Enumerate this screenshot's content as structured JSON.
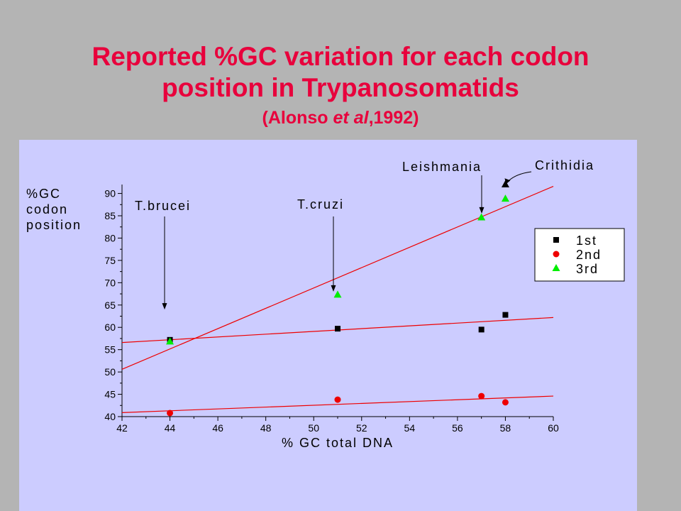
{
  "slide": {
    "title_line1": "Reported %GC variation for each codon",
    "title_line2": "position in Trypanosomatids",
    "citation_pre": "(Alonso ",
    "citation_italic": "et al",
    "citation_post": ",1992)"
  },
  "chart_data": {
    "type": "scatter",
    "xlabel": "% GC total DNA",
    "ylabel_lines": [
      "%GC",
      "codon",
      "position"
    ],
    "xlim": [
      42,
      60
    ],
    "ylim": [
      40,
      92
    ],
    "xticks": [
      42,
      44,
      46,
      48,
      50,
      52,
      54,
      56,
      58,
      60
    ],
    "yticks": [
      40,
      45,
      50,
      55,
      60,
      65,
      70,
      75,
      80,
      85,
      90
    ],
    "legend_position": "right",
    "series": [
      {
        "name": "1st",
        "marker": "square",
        "color": "#000000",
        "x": [
          44,
          51,
          57,
          58
        ],
        "y": [
          57.2,
          59.7,
          59.5,
          62.8
        ],
        "fit": {
          "x0": 42,
          "y0": 56.6,
          "x1": 60,
          "y1": 62.2,
          "color": "#ee0000"
        }
      },
      {
        "name": "2nd",
        "marker": "circle",
        "color": "#ee0000",
        "x": [
          44,
          51,
          57,
          58
        ],
        "y": [
          40.8,
          43.8,
          44.6,
          43.2
        ],
        "fit": {
          "x0": 42,
          "y0": 40.9,
          "x1": 60,
          "y1": 44.6,
          "color": "#ee0000"
        }
      },
      {
        "name": "3rd",
        "marker": "triangle",
        "color": "#00ee00",
        "x": [
          44,
          51,
          57,
          58
        ],
        "y": [
          56.8,
          67.3,
          84.6,
          88.8
        ],
        "fit": {
          "x0": 42,
          "y0": 50.6,
          "x1": 60,
          "y1": 91.6,
          "color": "#ee0000"
        }
      }
    ],
    "annotations": [
      {
        "text": "T.brucei",
        "x": 44,
        "arrow_to_y": 64
      },
      {
        "text": "T.cruzi",
        "x": 51,
        "arrow_to_y": 68
      },
      {
        "text": "Leishmania",
        "x": 57,
        "arrow_to_y": 85.5
      },
      {
        "text": "Crithidia",
        "x": 58,
        "arrow_to_y": 91.8
      }
    ],
    "extra_points": [
      {
        "x": 58,
        "y": 92.0,
        "marker": "triangle",
        "color": "#000000"
      }
    ]
  }
}
